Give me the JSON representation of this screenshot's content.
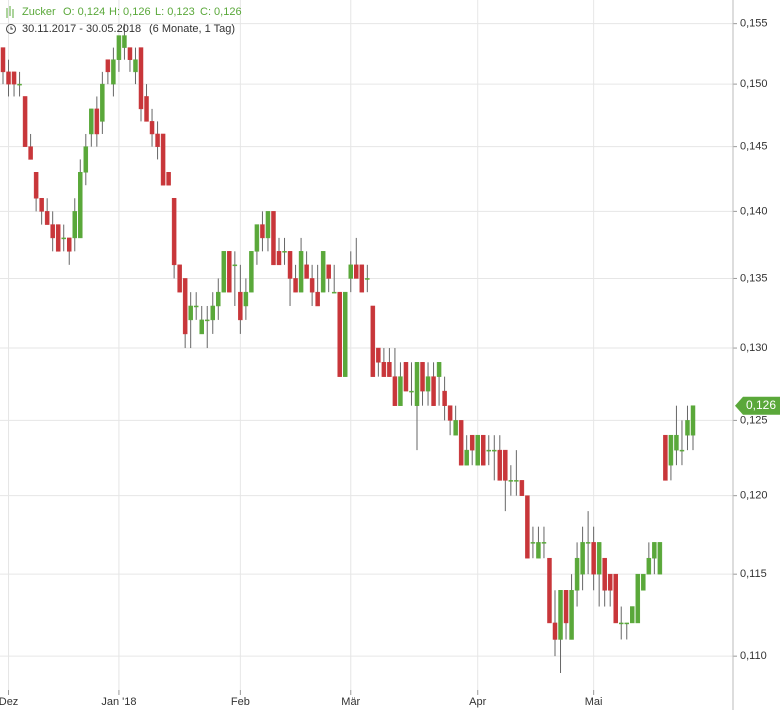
{
  "chart_data": {
    "type": "candlestick",
    "symbol": "Zucker",
    "ohlc_labels": [
      "O: 0,124",
      "H: 0,126",
      "L: 0,123",
      "C: 0,126"
    ],
    "range": "30.11.2017 - 30.05.2018",
    "period": "(6 Monate, 1 Tag)",
    "up_color": "#5aa83a",
    "down_color": "#c8363a",
    "log_scale": true,
    "grid": true,
    "ylim": [
      0.108,
      0.157
    ],
    "yticks": [
      {
        "value": 0.11,
        "label": "0,110"
      },
      {
        "value": 0.115,
        "label": "0,115"
      },
      {
        "value": 0.12,
        "label": "0,120"
      },
      {
        "value": 0.125,
        "label": "0,125"
      },
      {
        "value": 0.13,
        "label": "0,130"
      },
      {
        "value": 0.135,
        "label": "0,135"
      },
      {
        "value": 0.14,
        "label": "0,140"
      },
      {
        "value": 0.145,
        "label": "0,145"
      },
      {
        "value": 0.15,
        "label": "0,150"
      },
      {
        "value": 0.155,
        "label": "0,155"
      }
    ],
    "last_price": {
      "value": 0.126,
      "label": "0,126"
    },
    "categories": [
      null,
      "Dez",
      null,
      null,
      null,
      null,
      null,
      null,
      null,
      null,
      null,
      null,
      null,
      null,
      null,
      null,
      null,
      null,
      null,
      null,
      null,
      "Jan '18",
      null,
      null,
      null,
      null,
      null,
      null,
      null,
      null,
      null,
      null,
      null,
      null,
      null,
      null,
      null,
      null,
      null,
      null,
      null,
      null,
      null,
      "Feb",
      null,
      null,
      null,
      null,
      null,
      null,
      null,
      null,
      null,
      null,
      null,
      null,
      null,
      null,
      null,
      null,
      null,
      null,
      null,
      "Mär",
      null,
      null,
      null,
      null,
      null,
      null,
      null,
      null,
      null,
      null,
      null,
      null,
      null,
      null,
      null,
      null,
      null,
      null,
      null,
      null,
      null,
      null,
      "Apr",
      null,
      null,
      null,
      null,
      null,
      null,
      null,
      null,
      null,
      null,
      null,
      null,
      null,
      null,
      null,
      null,
      null,
      null,
      null,
      null,
      "Mai",
      null,
      null,
      null,
      null,
      null,
      null,
      null,
      null,
      null,
      null,
      null,
      null,
      null,
      null,
      null,
      null,
      null,
      null
    ],
    "open": [
      0.153,
      0.151,
      0.151,
      0.15,
      0.149,
      0.145,
      0.143,
      0.141,
      0.14,
      0.139,
      0.139,
      0.138,
      0.138,
      0.138,
      0.138,
      0.143,
      0.146,
      0.148,
      0.147,
      0.152,
      0.15,
      0.152,
      0.153,
      0.153,
      0.151,
      0.153,
      0.149,
      0.147,
      0.146,
      0.146,
      0.143,
      0.141,
      0.136,
      0.135,
      0.132,
      0.133,
      0.131,
      0.132,
      0.132,
      0.133,
      0.134,
      0.137,
      0.136,
      0.134,
      0.133,
      0.134,
      0.137,
      0.139,
      0.138,
      0.14,
      0.137,
      0.137,
      0.137,
      0.135,
      0.134,
      0.136,
      0.135,
      0.134,
      0.134,
      0.136,
      0.134,
      0.134,
      0.128,
      0.135,
      0.136,
      0.136,
      0.135,
      0.133,
      0.13,
      0.129,
      0.129,
      0.128,
      0.126,
      0.129,
      0.127,
      0.126,
      0.129,
      0.127,
      0.128,
      0.128,
      0.127,
      0.126,
      0.124,
      0.125,
      0.122,
      0.124,
      0.122,
      0.124,
      0.123,
      0.123,
      0.123,
      0.123,
      0.121,
      0.121,
      0.121,
      0.12,
      0.117,
      0.116,
      0.117,
      0.116,
      0.112,
      0.111,
      0.114,
      0.111,
      0.114,
      0.115,
      0.117,
      0.117,
      0.115,
      0.116,
      0.115,
      0.115,
      0.112,
      0.112,
      0.112,
      0.112,
      0.114,
      0.115,
      0.116,
      0.115,
      0.124,
      0.122,
      0.123,
      0.123,
      0.124,
      0.124
    ],
    "high": [
      0.153,
      0.152,
      0.151,
      0.151,
      0.149,
      0.146,
      0.143,
      0.141,
      0.141,
      0.14,
      0.139,
      0.139,
      0.138,
      0.141,
      0.144,
      0.146,
      0.148,
      0.149,
      0.151,
      0.152,
      0.153,
      0.154,
      0.155,
      0.153,
      0.153,
      0.153,
      0.15,
      0.148,
      0.147,
      0.146,
      0.143,
      0.141,
      0.136,
      0.135,
      0.134,
      0.134,
      0.133,
      0.133,
      0.134,
      0.135,
      0.137,
      0.137,
      0.137,
      0.136,
      0.135,
      0.137,
      0.139,
      0.14,
      0.14,
      0.14,
      0.138,
      0.138,
      0.137,
      0.136,
      0.138,
      0.137,
      0.136,
      0.136,
      0.137,
      0.136,
      0.136,
      0.134,
      0.134,
      0.137,
      0.138,
      0.136,
      0.136,
      0.133,
      0.13,
      0.13,
      0.13,
      0.13,
      0.129,
      0.129,
      0.129,
      0.129,
      0.129,
      0.129,
      0.129,
      0.129,
      0.128,
      0.126,
      0.126,
      0.125,
      0.124,
      0.124,
      0.124,
      0.124,
      0.124,
      0.124,
      0.124,
      0.123,
      0.122,
      0.123,
      0.121,
      0.12,
      0.118,
      0.118,
      0.118,
      0.116,
      0.114,
      0.114,
      0.114,
      0.115,
      0.117,
      0.118,
      0.119,
      0.118,
      0.117,
      0.116,
      0.115,
      0.115,
      0.113,
      0.112,
      0.113,
      0.115,
      0.115,
      0.117,
      0.117,
      0.117,
      0.124,
      0.124,
      0.126,
      0.125,
      0.126,
      0.126
    ],
    "low": [
      0.15,
      0.149,
      0.149,
      0.149,
      0.145,
      0.144,
      0.14,
      0.139,
      0.139,
      0.137,
      0.137,
      0.137,
      0.136,
      0.137,
      0.138,
      0.142,
      0.145,
      0.145,
      0.146,
      0.15,
      0.149,
      0.151,
      0.152,
      0.151,
      0.15,
      0.147,
      0.147,
      0.145,
      0.144,
      0.142,
      0.142,
      0.135,
      0.134,
      0.13,
      0.13,
      0.132,
      0.131,
      0.13,
      0.131,
      0.132,
      0.134,
      0.134,
      0.133,
      0.131,
      0.132,
      0.134,
      0.136,
      0.137,
      0.137,
      0.136,
      0.136,
      0.136,
      0.133,
      0.134,
      0.134,
      0.135,
      0.133,
      0.133,
      0.134,
      0.134,
      0.134,
      0.128,
      0.128,
      0.134,
      0.135,
      0.134,
      0.134,
      0.128,
      0.128,
      0.128,
      0.128,
      0.126,
      0.126,
      0.127,
      0.126,
      0.123,
      0.126,
      0.126,
      0.126,
      0.126,
      0.125,
      0.124,
      0.124,
      0.122,
      0.122,
      0.122,
      0.122,
      0.122,
      0.122,
      0.121,
      0.121,
      0.119,
      0.12,
      0.12,
      0.12,
      0.116,
      0.116,
      0.116,
      0.116,
      0.112,
      0.11,
      0.109,
      0.111,
      0.111,
      0.113,
      0.114,
      0.115,
      0.114,
      0.113,
      0.113,
      0.113,
      0.112,
      0.111,
      0.111,
      0.112,
      0.112,
      0.114,
      0.115,
      0.115,
      0.115,
      0.121,
      0.121,
      0.122,
      0.122,
      0.123,
      0.123
    ],
    "close": [
      0.151,
      0.15,
      0.15,
      0.15,
      0.145,
      0.144,
      0.141,
      0.14,
      0.139,
      0.138,
      0.137,
      0.138,
      0.137,
      0.14,
      0.143,
      0.145,
      0.148,
      0.146,
      0.15,
      0.151,
      0.152,
      0.154,
      0.154,
      0.152,
      0.152,
      0.148,
      0.147,
      0.146,
      0.145,
      0.142,
      0.142,
      0.136,
      0.134,
      0.131,
      0.133,
      0.133,
      0.132,
      0.132,
      0.133,
      0.134,
      0.137,
      0.134,
      0.136,
      0.132,
      0.134,
      0.137,
      0.139,
      0.138,
      0.14,
      0.136,
      0.136,
      0.137,
      0.135,
      0.134,
      0.137,
      0.135,
      0.134,
      0.133,
      0.137,
      0.135,
      0.134,
      0.128,
      0.134,
      0.136,
      0.135,
      0.134,
      0.135,
      0.128,
      0.129,
      0.128,
      0.128,
      0.126,
      0.128,
      0.127,
      0.127,
      0.129,
      0.127,
      0.128,
      0.126,
      0.129,
      0.126,
      0.125,
      0.125,
      0.122,
      0.123,
      0.123,
      0.124,
      0.122,
      0.123,
      0.123,
      0.121,
      0.121,
      0.121,
      0.121,
      0.12,
      0.116,
      0.117,
      0.117,
      0.117,
      0.112,
      0.111,
      0.114,
      0.112,
      0.114,
      0.116,
      0.117,
      0.117,
      0.115,
      0.117,
      0.114,
      0.114,
      0.112,
      0.112,
      0.112,
      0.113,
      0.115,
      0.115,
      0.116,
      0.117,
      0.117,
      0.121,
      0.124,
      0.124,
      0.123,
      0.125,
      0.126
    ]
  }
}
